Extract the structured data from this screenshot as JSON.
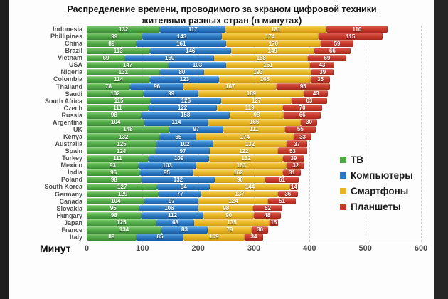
{
  "title": {
    "line1": "Распределение времени, проводимого за экраном цифровой техники",
    "line2": "жителями разных стран (в минутах)"
  },
  "axis": {
    "label": "Минут",
    "ticks": [
      0,
      100,
      200,
      300,
      400,
      500,
      600
    ]
  },
  "chart_data": {
    "type": "bar",
    "stacked": true,
    "orientation": "horizontal",
    "title": "Распределение времени, проводимого за экраном цифровой техники жителями разных стран (в минутах)",
    "xlabel": "Минут",
    "xlim": [
      0,
      600
    ],
    "grid": "dashed-vertical-every-100",
    "legend_position": "right",
    "categories": [
      "Indonesia",
      "Phillipines",
      "China",
      "Brazil",
      "Vietnam",
      "USA",
      "Nigeria",
      "Colombia",
      "Thailand",
      "Saudi",
      "South Africa",
      "Czech",
      "Russia",
      "Argentina",
      "UK",
      "Kenya",
      "Australia",
      "Spain",
      "Turkey",
      "Mexico",
      "India",
      "Poland",
      "South Korea",
      "Germany",
      "Canada",
      "Slovakia",
      "Hungary",
      "Japan",
      "France",
      "Italy"
    ],
    "series": [
      {
        "name": "ТВ",
        "color": "#4FA845",
        "color_light": "#83CD72",
        "color_dark": "#3E8E38",
        "values": [
          132,
          99,
          89,
          113,
          69,
          147,
          131,
          114,
          78,
          102,
          115,
          111,
          98,
          104,
          148,
          132,
          125,
          124,
          111,
          93,
          96,
          98,
          127,
          129,
          104,
          95,
          98,
          125,
          134,
          89
        ]
      },
      {
        "name": "Компьютеры",
        "color": "#2B77C0",
        "color_light": "#5EAAE8",
        "color_dark": "#1C5FA6",
        "values": [
          117,
          143,
          161,
          146,
          160,
          103,
          80,
          123,
          96,
          99,
          126,
          122,
          158,
          114,
          97,
          65,
          102,
          97,
          109,
          103,
          95,
          132,
          94,
          77,
          97,
          106,
          112,
          68,
          83,
          85
        ]
      },
      {
        "name": "Смартфоны",
        "color": "#E7B422",
        "color_light": "#F6D45C",
        "color_dark": "#D29F14",
        "values": [
          181,
          174,
          170,
          149,
          168,
          151,
          193,
          165,
          167,
          189,
          127,
          119,
          98,
          166,
          111,
          174,
          132,
          122,
          132,
          163,
          162,
          90,
          144,
          137,
          124,
          98,
          90,
          135,
          79,
          109
        ]
      },
      {
        "name": "Планшеты",
        "color": "#C5382A",
        "color_light": "#DB6152",
        "color_dark": "#A82A1E",
        "values": [
          110,
          115,
          59,
          66,
          69,
          43,
          39,
          35,
          95,
          43,
          63,
          70,
          66,
          30,
          55,
          33,
          37,
          53,
          39,
          32,
          31,
          61,
          14,
          36,
          51,
          52,
          48,
          15,
          30,
          34
        ]
      }
    ]
  }
}
